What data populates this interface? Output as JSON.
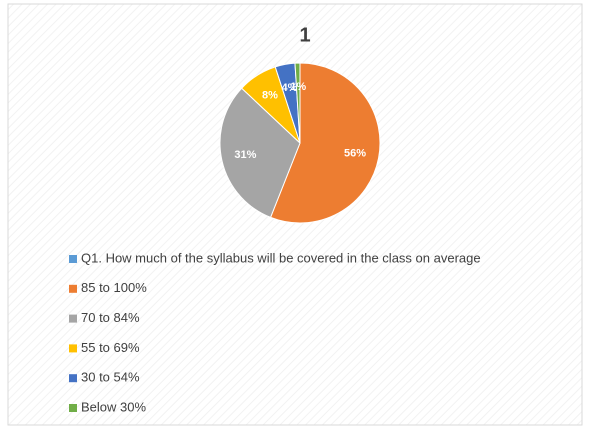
{
  "chart_data": {
    "type": "pie",
    "title": "1",
    "series": [
      {
        "name": "Q1. How much of the syllabus will be covered in the class on average",
        "color": "#5b9bd5",
        "values": [
          56,
          31,
          8,
          4,
          1
        ],
        "value_labels": [
          "56%",
          "31%",
          "8%",
          "4%",
          "1%"
        ]
      }
    ],
    "categories": [
      "85 to 100%",
      "70 to 84%",
      "55 to 69%",
      "30 to 54%",
      "Below 30%"
    ],
    "colors": [
      "#ed7d31",
      "#a5a5a5",
      "#ffc000",
      "#4472c4",
      "#70ad47"
    ],
    "legend": "bottom"
  }
}
